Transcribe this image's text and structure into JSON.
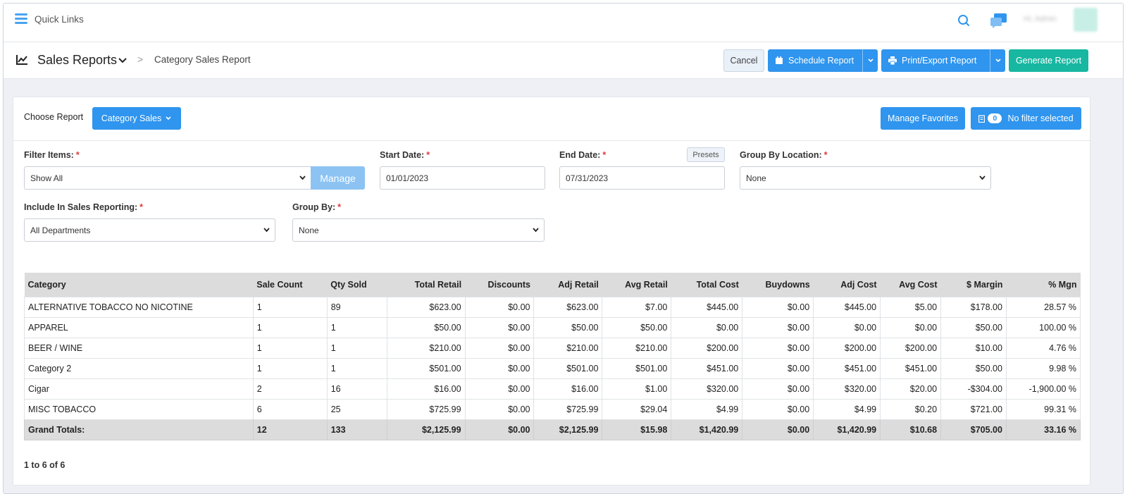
{
  "topbar": {
    "quick_links": "Quick Links",
    "admin_label": "Hi, Admin"
  },
  "header": {
    "title": "Sales Reports",
    "breadcrumb_sep": ">",
    "breadcrumb": "Category Sales Report",
    "cancel": "Cancel",
    "schedule": "Schedule Report",
    "print": "Print/Export Report",
    "generate": "Generate Report"
  },
  "card": {
    "choose_label": "Choose Report",
    "report_select": "Category Sales",
    "manage_favorites": "Manage Favorites",
    "filter_count": "0",
    "filter_label": "No filter selected"
  },
  "filters": {
    "filter_items_label": "Filter Items:",
    "filter_items_value": "Show All",
    "manage": "Manage",
    "start_label": "Start Date:",
    "start_value": "01/01/2023",
    "end_label": "End Date:",
    "end_value": "07/31/2023",
    "presets": "Presets",
    "group_loc_label": "Group By Location:",
    "group_loc_value": "None",
    "include_label": "Include In Sales Reporting:",
    "include_value": "All Departments",
    "group_by_label": "Group By:",
    "group_by_value": "None",
    "required_mark": "*"
  },
  "table": {
    "columns": [
      "Category",
      "Sale Count",
      "Qty Sold",
      "Total Retail",
      "Discounts",
      "Adj Retail",
      "Avg Retail",
      "Total Cost",
      "Buydowns",
      "Adj Cost",
      "Avg Cost",
      "$ Margin",
      "% Mgn"
    ],
    "rows": [
      [
        "ALTERNATIVE TOBACCO NO NICOTINE",
        "1",
        "89",
        "$623.00",
        "$0.00",
        "$623.00",
        "$7.00",
        "$445.00",
        "$0.00",
        "$445.00",
        "$5.00",
        "$178.00",
        "28.57 %"
      ],
      [
        "APPAREL",
        "1",
        "1",
        "$50.00",
        "$0.00",
        "$50.00",
        "$50.00",
        "$0.00",
        "$0.00",
        "$0.00",
        "$0.00",
        "$50.00",
        "100.00 %"
      ],
      [
        "BEER / WINE",
        "1",
        "1",
        "$210.00",
        "$0.00",
        "$210.00",
        "$210.00",
        "$200.00",
        "$0.00",
        "$200.00",
        "$200.00",
        "$10.00",
        "4.76 %"
      ],
      [
        "Category 2",
        "1",
        "1",
        "$501.00",
        "$0.00",
        "$501.00",
        "$501.00",
        "$451.00",
        "$0.00",
        "$451.00",
        "$451.00",
        "$50.00",
        "9.98 %"
      ],
      [
        "Cigar",
        "2",
        "16",
        "$16.00",
        "$0.00",
        "$16.00",
        "$1.00",
        "$320.00",
        "$0.00",
        "$320.00",
        "$20.00",
        "-$304.00",
        "-1,900.00 %"
      ],
      [
        "MISC TOBACCO",
        "6",
        "25",
        "$725.99",
        "$0.00",
        "$725.99",
        "$29.04",
        "$4.99",
        "$0.00",
        "$4.99",
        "$0.20",
        "$721.00",
        "99.31 %"
      ]
    ],
    "totals": [
      "Grand Totals:",
      "12",
      "133",
      "$2,125.99",
      "$0.00",
      "$2,125.99",
      "$15.98",
      "$1,420.99",
      "$0.00",
      "$1,420.99",
      "$10.68",
      "$705.00",
      "33.16 %"
    ]
  },
  "pager": "1 to 6 of 6"
}
